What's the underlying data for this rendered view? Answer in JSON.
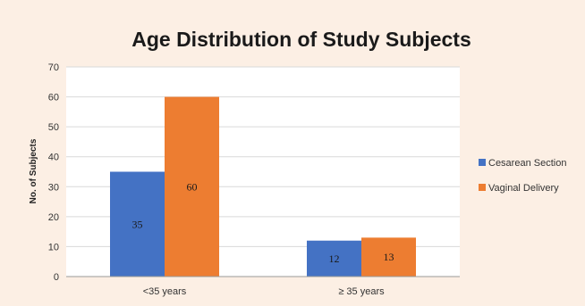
{
  "chart_data": {
    "type": "bar",
    "title": "Age Distribution of Study Subjects",
    "xlabel": "",
    "ylabel": "No. of Subjects",
    "categories": [
      "<35 years",
      "≥ 35 years"
    ],
    "series": [
      {
        "name": "Cesarean Section",
        "values": [
          35,
          12
        ],
        "color": "#4472c4"
      },
      {
        "name": "Vaginal Delivery",
        "values": [
          60,
          13
        ],
        "color": "#ed7d31"
      }
    ],
    "ylim": [
      0,
      70
    ],
    "yticks": [
      0,
      10,
      20,
      30,
      40,
      50,
      60,
      70
    ],
    "grid": true,
    "legend": "right",
    "data_labels": true
  }
}
